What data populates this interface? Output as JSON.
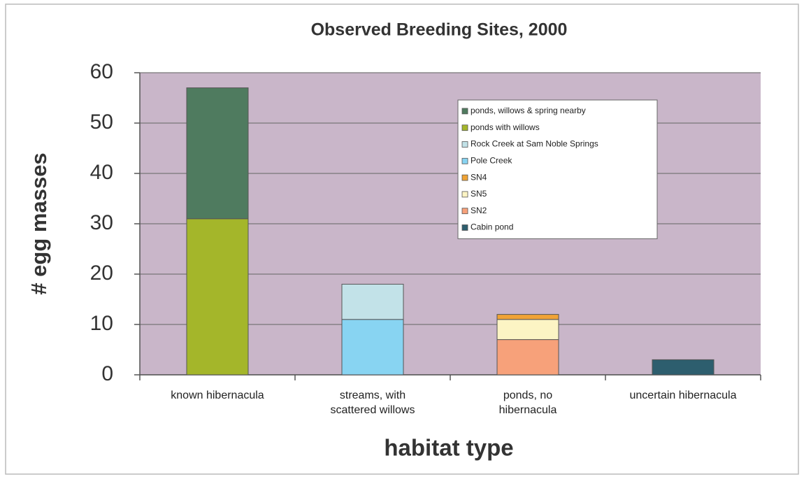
{
  "chart_data": {
    "type": "stacked_bar",
    "title": "Observed Breeding Sites, 2000",
    "x_label": "habitat type",
    "y_label": "# egg masses",
    "categories": [
      "known hibernacula",
      "streams, with scattered willows",
      "ponds, no hibernacula",
      "uncertain hibernacula"
    ],
    "series": [
      {
        "name": "Cabin pond",
        "color": "#2d5e6e",
        "values": [
          null,
          null,
          null,
          3
        ]
      },
      {
        "name": "SN2",
        "color": "#f7a17a",
        "values": [
          null,
          null,
          7,
          null
        ]
      },
      {
        "name": "SN5",
        "color": "#fcf4c4",
        "values": [
          null,
          null,
          4,
          null
        ]
      },
      {
        "name": "SN4",
        "color": "#f0a334",
        "values": [
          null,
          null,
          1,
          null
        ]
      },
      {
        "name": "Pole Creek",
        "color": "#88d4f2",
        "values": [
          null,
          11,
          null,
          null
        ]
      },
      {
        "name": "Rock Creek at Sam Noble Springs",
        "color": "#c2e2e8",
        "values": [
          null,
          7,
          null,
          null
        ]
      },
      {
        "name": "ponds with willows",
        "color": "#a4b62a",
        "values": [
          31,
          null,
          null,
          null
        ]
      },
      {
        "name": "ponds, willows & spring nearby",
        "color": "#4f7b5f",
        "values": [
          26,
          null,
          null,
          null
        ]
      }
    ],
    "ylim": [
      0,
      60
    ],
    "yticks": [
      0,
      10,
      20,
      30,
      40,
      50,
      60
    ],
    "grid": true,
    "legend": "upper right",
    "plot_color": "#c9b6c9"
  }
}
